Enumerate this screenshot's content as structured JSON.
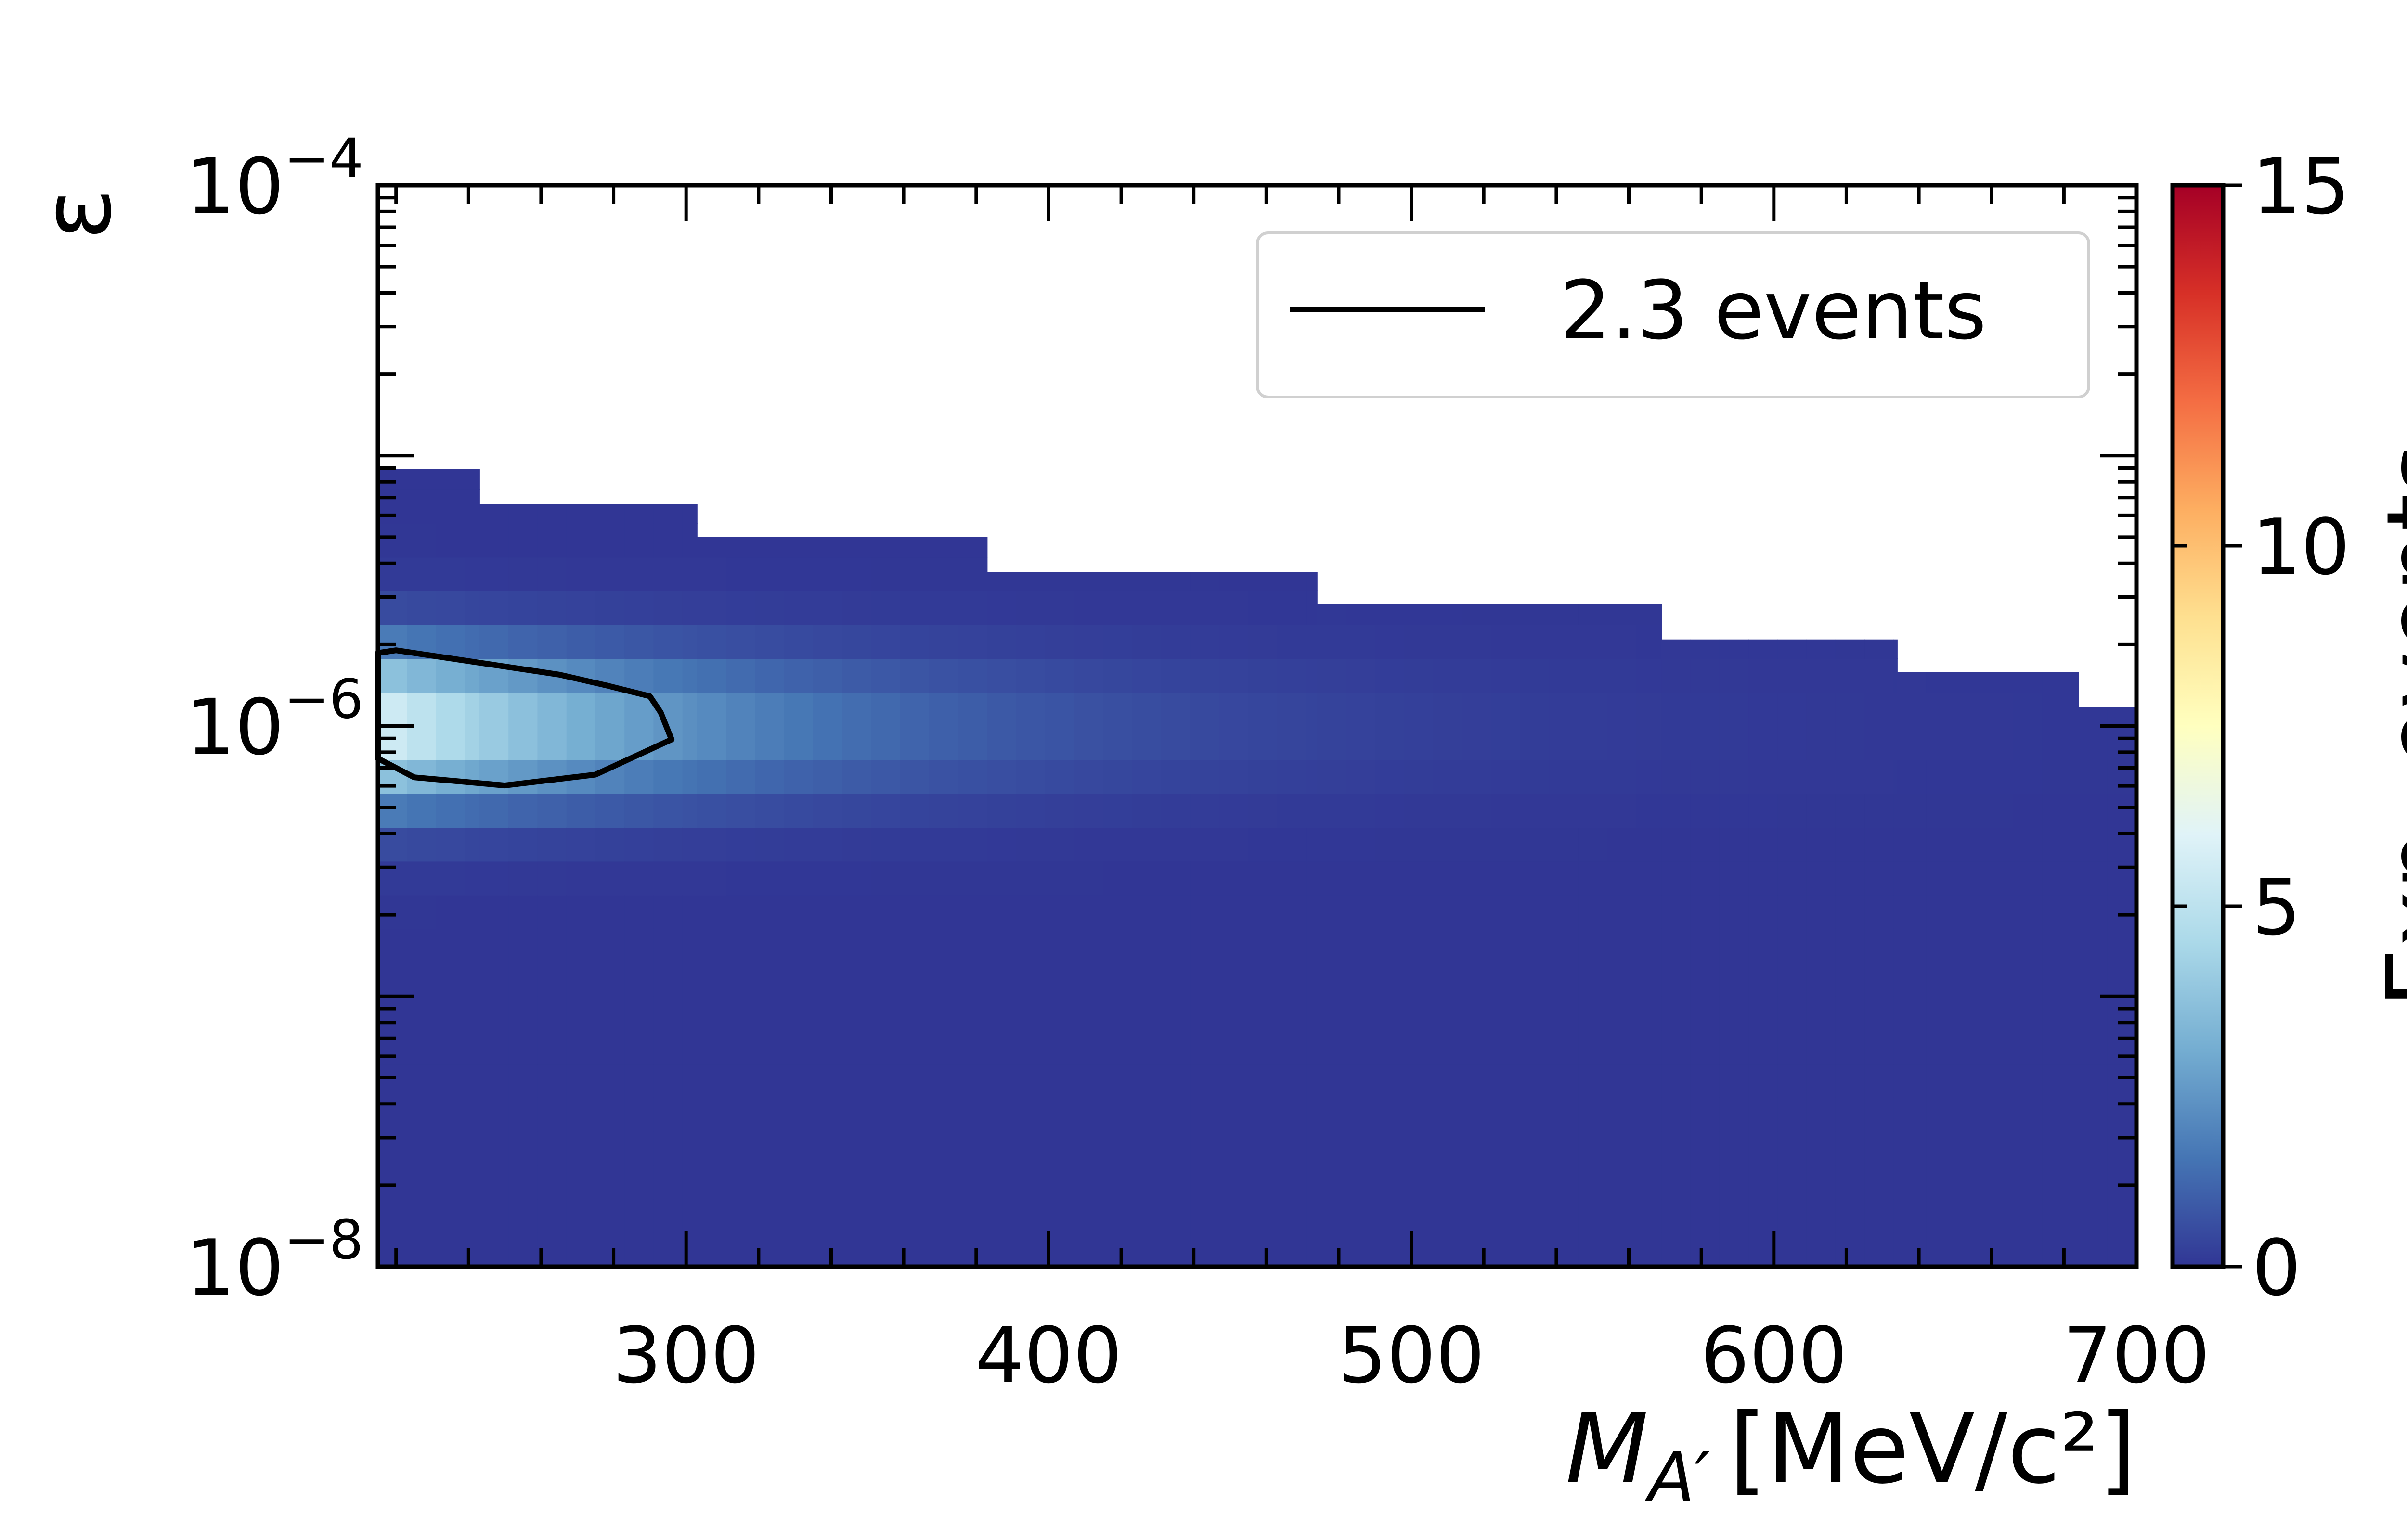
{
  "chart_data": {
    "type": "heatmap",
    "title": "",
    "x": {
      "label_main": "M",
      "label_sub": "A′",
      "label_unit": "[MeV/c²]",
      "range": [
        215,
        700
      ],
      "ticks": [
        300,
        400,
        500,
        600,
        700
      ],
      "tick_labels": [
        "300",
        "400",
        "500",
        "600",
        "700"
      ]
    },
    "y": {
      "label": "ε",
      "scale": "log",
      "range_exp": [
        -8,
        -4
      ],
      "major_exps": [
        -8,
        -6,
        -4
      ],
      "tick_labels": [
        {
          "base": "10",
          "exp": "−8"
        },
        {
          "base": "10",
          "exp": "−6"
        },
        {
          "base": "10",
          "exp": "−4"
        }
      ]
    },
    "colorbar": {
      "label": "Exp. events",
      "range": [
        0,
        15
      ],
      "ticks": [
        0,
        5,
        10,
        15
      ],
      "tick_labels": [
        "0",
        "5",
        "10",
        "15"
      ],
      "colormap": [
        "#313695",
        "#4575b4",
        "#74add1",
        "#abd9e9",
        "#e0f3f8",
        "#ffffbf",
        "#fee090",
        "#fdae61",
        "#f46d43",
        "#d73027",
        "#a50026"
      ]
    },
    "mass_bin_edges": [
      215,
      243,
      303,
      383,
      474,
      569,
      634,
      684,
      700
    ],
    "epsilon_upper_exp": [
      -5.05,
      -5.18,
      -5.3,
      -5.43,
      -5.55,
      -5.68,
      -5.8,
      -5.93
    ],
    "epsilon_lower_exp": -8,
    "signal_region": {
      "peak_log_eps": -6.0,
      "peak_events": 6.0,
      "mass_falloff_MeV": 90,
      "width_log_eps": 0.28
    },
    "contour": {
      "label": "2.3 events",
      "level": 2.3,
      "points": [
        [
          215,
          -5.73
        ],
        [
          220,
          -5.72
        ],
        [
          240,
          -5.76
        ],
        [
          265,
          -5.81
        ],
        [
          278,
          -5.85
        ],
        [
          290,
          -5.89
        ],
        [
          293,
          -5.95
        ],
        [
          296,
          -6.05
        ],
        [
          275,
          -6.18
        ],
        [
          250,
          -6.22
        ],
        [
          225,
          -6.19
        ],
        [
          215,
          -6.12
        ]
      ]
    },
    "legend": {
      "placement": "top-right",
      "entries": [
        "2.3 events"
      ]
    }
  }
}
